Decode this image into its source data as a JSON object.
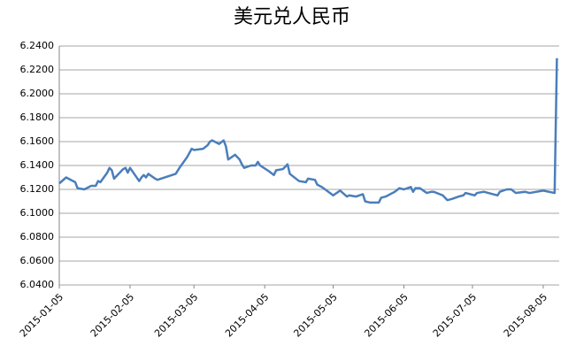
{
  "chart_data": {
    "type": "line",
    "title": "美元兑人民币",
    "x": [
      "2015-01-05",
      "2015-01-08",
      "2015-01-12",
      "2015-01-13",
      "2015-01-16",
      "2015-01-19",
      "2015-01-21",
      "2015-01-22",
      "2015-01-23",
      "2015-01-26",
      "2015-01-27",
      "2015-01-28",
      "2015-01-29",
      "2015-02-02",
      "2015-02-03",
      "2015-02-04",
      "2015-02-05",
      "2015-02-09",
      "2015-02-10",
      "2015-02-11",
      "2015-02-12",
      "2015-02-13",
      "2015-02-16",
      "2015-02-17",
      "2015-02-25",
      "2015-02-27",
      "2015-03-02",
      "2015-03-04",
      "2015-03-05",
      "2015-03-09",
      "2015-03-11",
      "2015-03-12",
      "2015-03-13",
      "2015-03-16",
      "2015-03-18",
      "2015-03-19",
      "2015-03-20",
      "2015-03-23",
      "2015-03-24",
      "2015-03-25",
      "2015-03-26",
      "2015-03-27",
      "2015-03-30",
      "2015-04-01",
      "2015-04-02",
      "2015-04-03",
      "2015-04-07",
      "2015-04-09",
      "2015-04-10",
      "2015-04-13",
      "2015-04-14",
      "2015-04-15",
      "2015-04-16",
      "2015-04-20",
      "2015-04-23",
      "2015-04-24",
      "2015-04-27",
      "2015-04-28",
      "2015-04-30",
      "2015-05-05",
      "2015-05-08",
      "2015-05-11",
      "2015-05-12",
      "2015-05-15",
      "2015-05-18",
      "2015-05-19",
      "2015-05-21",
      "2015-05-25",
      "2015-05-26",
      "2015-05-28",
      "2015-06-01",
      "2015-06-03",
      "2015-06-05",
      "2015-06-08",
      "2015-06-09",
      "2015-06-10",
      "2015-06-12",
      "2015-06-15",
      "2015-06-17",
      "2015-06-18",
      "2015-06-22",
      "2015-06-24",
      "2015-06-26",
      "2015-06-29",
      "2015-07-01",
      "2015-07-02",
      "2015-07-06",
      "2015-07-07",
      "2015-07-10",
      "2015-07-14",
      "2015-07-16",
      "2015-07-17",
      "2015-07-20",
      "2015-07-22",
      "2015-07-24",
      "2015-07-28",
      "2015-07-30",
      "2015-08-05",
      "2015-08-10",
      "2015-08-11"
    ],
    "series": [
      {
        "color": "#4a7ebb",
        "values": [
          6.125,
          6.13,
          6.126,
          6.121,
          6.12,
          6.123,
          6.123,
          6.127,
          6.126,
          6.134,
          6.138,
          6.136,
          6.129,
          6.137,
          6.138,
          6.134,
          6.138,
          6.127,
          6.13,
          6.132,
          6.13,
          6.133,
          6.129,
          6.128,
          6.133,
          6.139,
          6.147,
          6.154,
          6.153,
          6.154,
          6.157,
          6.16,
          6.161,
          6.158,
          6.161,
          6.156,
          6.145,
          6.149,
          6.147,
          6.145,
          6.141,
          6.138,
          6.14,
          6.14,
          6.143,
          6.14,
          6.135,
          6.132,
          6.136,
          6.137,
          6.139,
          6.141,
          6.133,
          6.127,
          6.126,
          6.129,
          6.128,
          6.124,
          6.122,
          6.115,
          6.119,
          6.114,
          6.115,
          6.114,
          6.116,
          6.11,
          6.109,
          6.109,
          6.113,
          6.114,
          6.118,
          6.121,
          6.12,
          6.122,
          6.118,
          6.121,
          6.121,
          6.117,
          6.118,
          6.118,
          6.115,
          6.111,
          6.112,
          6.114,
          6.115,
          6.117,
          6.115,
          6.117,
          6.118,
          6.116,
          6.115,
          6.118,
          6.12,
          6.12,
          6.117,
          6.118,
          6.117,
          6.119,
          6.117,
          6.2298
        ]
      }
    ],
    "xlim": [
      "2015-01-05",
      "2015-08-12"
    ],
    "xticks": [
      "2015-01-05",
      "2015-02-05",
      "2015-03-05",
      "2015-04-05",
      "2015-05-05",
      "2015-06-05",
      "2015-07-05",
      "2015-08-05"
    ],
    "ylim": [
      6.04,
      6.24
    ],
    "yticks": [
      {
        "value": 6.04,
        "label": "6.0400"
      },
      {
        "value": 6.06,
        "label": "6.0600"
      },
      {
        "value": 6.08,
        "label": "6.0800"
      },
      {
        "value": 6.1,
        "label": "6.1000"
      },
      {
        "value": 6.12,
        "label": "6.1200"
      },
      {
        "value": 6.14,
        "label": "6.1400"
      },
      {
        "value": 6.16,
        "label": "6.1600"
      },
      {
        "value": 6.18,
        "label": "6.1800"
      },
      {
        "value": 6.2,
        "label": "6.2000"
      },
      {
        "value": 6.22,
        "label": "6.2200"
      },
      {
        "value": 6.24,
        "label": "6.2400"
      }
    ],
    "grid": true
  }
}
